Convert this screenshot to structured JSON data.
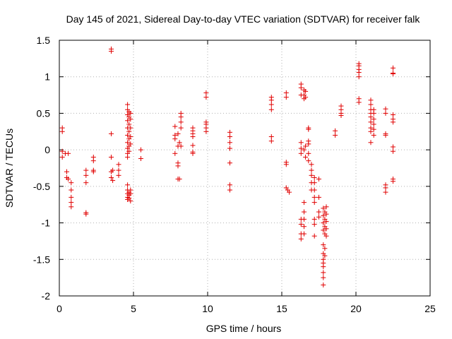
{
  "chart_data": {
    "type": "scatter",
    "title": "Day 145 of 2021, Sidereal Day-to-day VTEC variation (SDTVAR) for receiver falk",
    "xlabel": "GPS time / hours",
    "ylabel": "SDTVAR / TECUs",
    "xlim": [
      0,
      25
    ],
    "ylim": [
      -2,
      1.5
    ],
    "xticks": [
      0,
      5,
      10,
      15,
      20,
      25
    ],
    "yticks": [
      -2,
      -1.5,
      -1,
      -0.5,
      0,
      0.5,
      1,
      1.5
    ],
    "xtick_labels": [
      "0",
      "5",
      "10",
      "15",
      "20",
      "25"
    ],
    "ytick_labels": [
      "-2",
      "-1.5",
      "-1",
      "-0.5",
      "0",
      "0.5",
      "1",
      "1.5"
    ],
    "grid": true,
    "marker": "plus",
    "color": "#e00000",
    "series": [
      {
        "name": "SDTVAR",
        "points": [
          [
            0.2,
            0.3
          ],
          [
            0.2,
            0.25
          ],
          [
            0.2,
            -0.02
          ],
          [
            0.2,
            -0.1
          ],
          [
            0.4,
            -0.05
          ],
          [
            0.5,
            -0.3
          ],
          [
            0.5,
            -0.38
          ],
          [
            0.6,
            -0.4
          ],
          [
            0.6,
            -0.05
          ],
          [
            0.8,
            -0.45
          ],
          [
            0.8,
            -0.55
          ],
          [
            0.8,
            -0.65
          ],
          [
            0.8,
            -0.72
          ],
          [
            0.8,
            -0.78
          ],
          [
            1.8,
            -0.28
          ],
          [
            1.8,
            -0.35
          ],
          [
            1.8,
            -0.45
          ],
          [
            1.8,
            -0.86
          ],
          [
            1.8,
            -0.88
          ],
          [
            2.3,
            -0.1
          ],
          [
            2.3,
            -0.15
          ],
          [
            2.3,
            -0.28
          ],
          [
            2.3,
            -0.3
          ],
          [
            3.5,
            1.38
          ],
          [
            3.5,
            1.35
          ],
          [
            3.5,
            0.22
          ],
          [
            3.5,
            -0.1
          ],
          [
            3.5,
            -0.3
          ],
          [
            3.5,
            -0.38
          ],
          [
            3.6,
            -0.42
          ],
          [
            3.6,
            -0.28
          ],
          [
            4.0,
            -0.2
          ],
          [
            4.0,
            -0.28
          ],
          [
            4.0,
            -0.35
          ],
          [
            4.6,
            0.62
          ],
          [
            4.6,
            0.55
          ],
          [
            4.6,
            0.48
          ],
          [
            4.6,
            0.4
          ],
          [
            4.6,
            0.3
          ],
          [
            4.6,
            0.2
          ],
          [
            4.6,
            0.1
          ],
          [
            4.6,
            0.02
          ],
          [
            4.6,
            -0.05
          ],
          [
            4.6,
            -0.1
          ],
          [
            4.6,
            -0.48
          ],
          [
            4.6,
            -0.55
          ],
          [
            4.6,
            -0.6
          ],
          [
            4.6,
            -0.65
          ],
          [
            4.6,
            -0.68
          ],
          [
            4.7,
            0.52
          ],
          [
            4.7,
            0.45
          ],
          [
            4.7,
            0.35
          ],
          [
            4.7,
            0.25
          ],
          [
            4.7,
            0.15
          ],
          [
            4.7,
            0.05
          ],
          [
            4.7,
            -0.02
          ],
          [
            4.7,
            -0.58
          ],
          [
            4.7,
            -0.62
          ],
          [
            4.7,
            -0.66
          ],
          [
            4.8,
            0.5
          ],
          [
            4.8,
            0.42
          ],
          [
            4.8,
            0.3
          ],
          [
            4.8,
            0.18
          ],
          [
            4.8,
            0.08
          ],
          [
            4.8,
            -0.55
          ],
          [
            4.8,
            -0.6
          ],
          [
            4.8,
            -0.7
          ],
          [
            5.5,
            0.0
          ],
          [
            5.5,
            -0.12
          ],
          [
            7.8,
            0.32
          ],
          [
            7.8,
            0.2
          ],
          [
            7.8,
            0.15
          ],
          [
            7.8,
            -0.05
          ],
          [
            8.0,
            0.22
          ],
          [
            8.0,
            0.05
          ],
          [
            8.0,
            -0.18
          ],
          [
            8.0,
            -0.22
          ],
          [
            8.0,
            -0.4
          ],
          [
            8.1,
            0.1
          ],
          [
            8.1,
            -0.4
          ],
          [
            8.2,
            0.5
          ],
          [
            8.2,
            0.45
          ],
          [
            8.2,
            0.38
          ],
          [
            8.2,
            0.3
          ],
          [
            8.2,
            0.05
          ],
          [
            9.0,
            0.3
          ],
          [
            9.0,
            0.26
          ],
          [
            9.0,
            0.22
          ],
          [
            9.0,
            0.18
          ],
          [
            9.0,
            0.06
          ],
          [
            9.0,
            -0.03
          ],
          [
            9.0,
            -0.05
          ],
          [
            9.9,
            0.78
          ],
          [
            9.9,
            0.72
          ],
          [
            9.9,
            0.38
          ],
          [
            9.9,
            0.35
          ],
          [
            9.9,
            0.3
          ],
          [
            9.9,
            0.25
          ],
          [
            11.5,
            0.24
          ],
          [
            11.5,
            0.18
          ],
          [
            11.5,
            0.1
          ],
          [
            11.5,
            0.02
          ],
          [
            11.5,
            -0.18
          ],
          [
            11.5,
            -0.48
          ],
          [
            11.5,
            -0.55
          ],
          [
            14.3,
            0.72
          ],
          [
            14.3,
            0.68
          ],
          [
            14.3,
            0.62
          ],
          [
            14.3,
            0.55
          ],
          [
            14.3,
            0.18
          ],
          [
            14.3,
            0.12
          ],
          [
            15.3,
            0.78
          ],
          [
            15.3,
            0.72
          ],
          [
            15.3,
            -0.17
          ],
          [
            15.3,
            -0.2
          ],
          [
            15.3,
            -0.52
          ],
          [
            15.4,
            -0.55
          ],
          [
            15.5,
            -0.58
          ],
          [
            16.3,
            0.9
          ],
          [
            16.3,
            0.85
          ],
          [
            16.3,
            0.75
          ],
          [
            16.3,
            0.1
          ],
          [
            16.3,
            0.02
          ],
          [
            16.3,
            -0.05
          ],
          [
            16.3,
            -0.95
          ],
          [
            16.3,
            -1.02
          ],
          [
            16.3,
            -1.15
          ],
          [
            16.3,
            -1.22
          ],
          [
            16.5,
            0.82
          ],
          [
            16.5,
            0.75
          ],
          [
            16.5,
            0.7
          ],
          [
            16.5,
            0.0
          ],
          [
            16.5,
            -0.72
          ],
          [
            16.5,
            -0.85
          ],
          [
            16.5,
            -0.95
          ],
          [
            16.5,
            -1.05
          ],
          [
            16.5,
            -1.15
          ],
          [
            16.6,
            0.8
          ],
          [
            16.6,
            0.72
          ],
          [
            16.6,
            0.05
          ],
          [
            16.6,
            -0.1
          ],
          [
            16.8,
            0.3
          ],
          [
            16.8,
            0.28
          ],
          [
            16.8,
            0.12
          ],
          [
            16.8,
            0.08
          ],
          [
            16.8,
            -0.05
          ],
          [
            16.8,
            -0.15
          ],
          [
            17.0,
            -0.2
          ],
          [
            17.0,
            -0.28
          ],
          [
            17.0,
            -0.35
          ],
          [
            17.0,
            -0.45
          ],
          [
            17.0,
            -0.55
          ],
          [
            17.2,
            -0.38
          ],
          [
            17.2,
            -0.45
          ],
          [
            17.2,
            -0.55
          ],
          [
            17.2,
            -0.65
          ],
          [
            17.2,
            -0.72
          ],
          [
            17.2,
            -0.95
          ],
          [
            17.2,
            -1.02
          ],
          [
            17.2,
            -1.18
          ],
          [
            17.5,
            -0.4
          ],
          [
            17.5,
            -0.65
          ],
          [
            17.5,
            -0.85
          ],
          [
            17.5,
            -0.92
          ],
          [
            17.8,
            -0.8
          ],
          [
            17.8,
            -0.9
          ],
          [
            17.8,
            -1.0
          ],
          [
            17.8,
            -1.1
          ],
          [
            17.8,
            -1.3
          ],
          [
            17.8,
            -1.42
          ],
          [
            17.8,
            -1.5
          ],
          [
            17.8,
            -1.55
          ],
          [
            17.8,
            -1.6
          ],
          [
            17.8,
            -1.68
          ],
          [
            17.8,
            -1.75
          ],
          [
            17.8,
            -1.85
          ],
          [
            17.9,
            -0.85
          ],
          [
            17.9,
            -0.95
          ],
          [
            17.9,
            -1.05
          ],
          [
            17.9,
            -1.15
          ],
          [
            17.9,
            -1.35
          ],
          [
            17.9,
            -1.45
          ],
          [
            18.0,
            -0.78
          ],
          [
            18.0,
            -0.88
          ],
          [
            18.0,
            -0.98
          ],
          [
            18.0,
            -1.08
          ],
          [
            18.0,
            -1.18
          ],
          [
            18.6,
            0.26
          ],
          [
            18.6,
            0.2
          ],
          [
            19.0,
            0.6
          ],
          [
            19.0,
            0.55
          ],
          [
            19.0,
            0.5
          ],
          [
            19.0,
            0.47
          ],
          [
            20.2,
            1.18
          ],
          [
            20.2,
            1.15
          ],
          [
            20.2,
            1.1
          ],
          [
            20.2,
            1.06
          ],
          [
            20.2,
            1.0
          ],
          [
            20.2,
            0.7
          ],
          [
            20.2,
            0.65
          ],
          [
            21.0,
            0.68
          ],
          [
            21.0,
            0.62
          ],
          [
            21.0,
            0.55
          ],
          [
            21.0,
            0.5
          ],
          [
            21.0,
            0.45
          ],
          [
            21.0,
            0.38
          ],
          [
            21.0,
            0.3
          ],
          [
            21.0,
            0.25
          ],
          [
            21.0,
            0.1
          ],
          [
            21.2,
            0.55
          ],
          [
            21.2,
            0.5
          ],
          [
            21.2,
            0.42
          ],
          [
            21.2,
            0.35
          ],
          [
            21.2,
            0.28
          ],
          [
            21.2,
            0.2
          ],
          [
            22.0,
            0.56
          ],
          [
            22.0,
            0.5
          ],
          [
            22.0,
            0.22
          ],
          [
            22.0,
            0.2
          ],
          [
            22.0,
            -0.48
          ],
          [
            22.0,
            -0.52
          ],
          [
            22.0,
            -0.58
          ],
          [
            22.5,
            1.12
          ],
          [
            22.5,
            1.05
          ],
          [
            22.5,
            1.04
          ],
          [
            22.5,
            0.48
          ],
          [
            22.5,
            0.42
          ],
          [
            22.5,
            0.38
          ],
          [
            22.5,
            0.04
          ],
          [
            22.5,
            -0.02
          ],
          [
            22.5,
            -0.4
          ],
          [
            22.5,
            -0.43
          ]
        ]
      }
    ]
  }
}
